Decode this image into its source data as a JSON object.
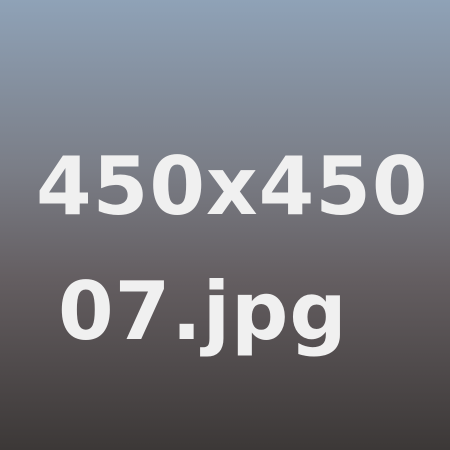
{
  "image": {
    "line1": "450x450",
    "line2": "07.jpg"
  },
  "colors": {
    "text": "#f0f0f0",
    "gradient_top": "#8fa2b7",
    "gradient_middle": "#645e61",
    "gradient_bottom": "#3c3837"
  }
}
